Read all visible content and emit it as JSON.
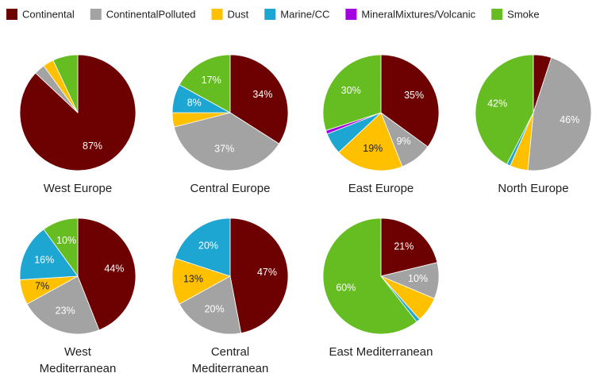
{
  "legend": {
    "labels": [
      "Continental",
      "ContinentalPolluted",
      "Dust",
      "Marine/CC",
      "MineralMixtures/Volcanic",
      "Smoke"
    ],
    "colors": [
      "#6d0000",
      "#a3a3a3",
      "#ffc000",
      "#1ea6d3",
      "#a200e0",
      "#66bd22"
    ]
  },
  "chart_data": [
    {
      "type": "pie",
      "title": [
        "West Europe"
      ],
      "values": [
        87,
        3,
        3,
        0,
        0,
        7
      ],
      "value_labels": [
        "87%",
        null,
        null,
        null,
        null,
        null
      ]
    },
    {
      "type": "pie",
      "title": [
        "Central Europe"
      ],
      "values": [
        34,
        37,
        4,
        8,
        0,
        17
      ],
      "value_labels": [
        "34%",
        "37%",
        null,
        "8%",
        null,
        "17%"
      ]
    },
    {
      "type": "pie",
      "title": [
        "East Europe"
      ],
      "values": [
        35,
        9,
        19,
        6,
        1,
        30
      ],
      "value_labels": [
        "35%",
        "9%",
        "19%",
        null,
        null,
        "30%"
      ]
    },
    {
      "type": "pie",
      "title": [
        "North Europe"
      ],
      "values": [
        5,
        46,
        5,
        1,
        0,
        42
      ],
      "value_labels": [
        null,
        "46%",
        null,
        null,
        null,
        "42%"
      ]
    },
    {
      "type": "pie",
      "title": [
        "West",
        "Mediterranean"
      ],
      "values": [
        44,
        23,
        7,
        16,
        0,
        10
      ],
      "value_labels": [
        "44%",
        "23%",
        "7%",
        "16%",
        null,
        "10%"
      ]
    },
    {
      "type": "pie",
      "title": [
        "Central",
        "Mediterranean"
      ],
      "values": [
        47,
        20,
        13,
        20,
        0,
        0
      ],
      "value_labels": [
        "47%",
        "20%",
        "13%",
        "20%",
        null,
        null
      ]
    },
    {
      "type": "pie",
      "title": [
        "East Mediterranean"
      ],
      "values": [
        21,
        10,
        7,
        1,
        0,
        60
      ],
      "value_labels": [
        "21%",
        "10%",
        null,
        null,
        null,
        "60%"
      ]
    }
  ]
}
